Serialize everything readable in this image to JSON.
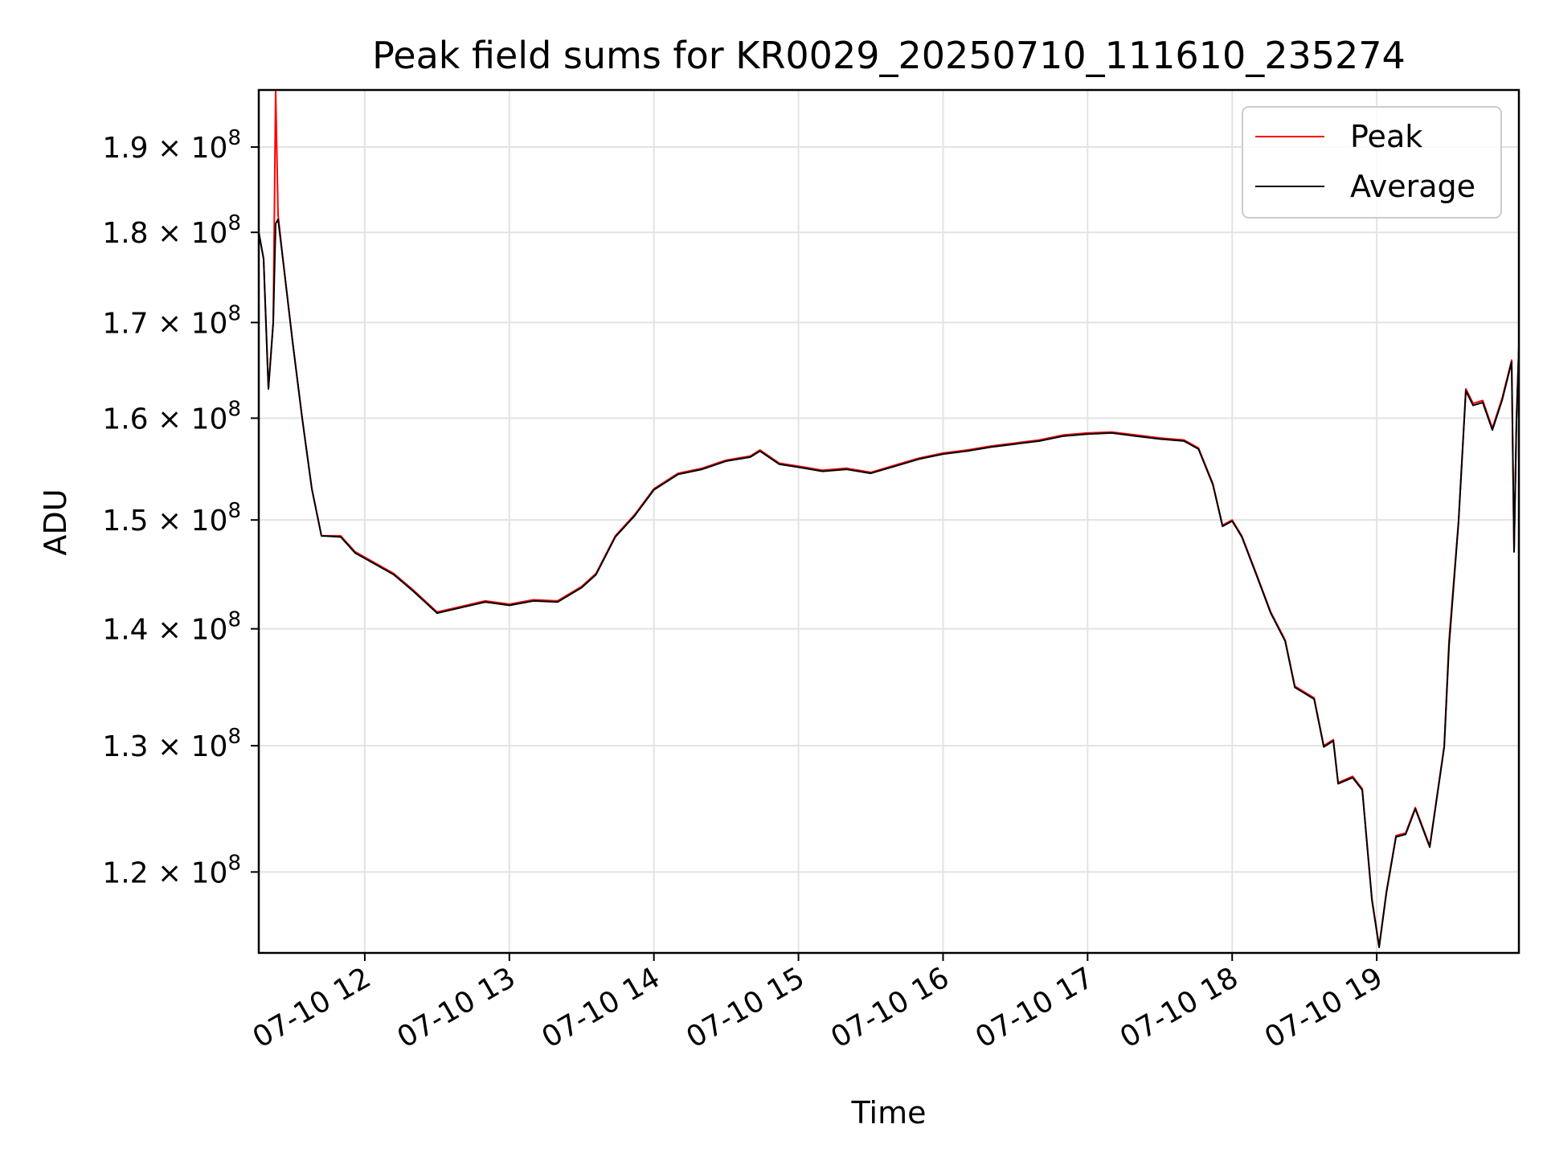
{
  "chart_data": {
    "type": "line",
    "title": "Peak field sums for KR0029_20250710_111610_235274",
    "xlabel": "Time",
    "ylabel": "ADU",
    "y_scale": "log",
    "ylim": [
      114000000,
      197000000
    ],
    "xlim": [
      "2025-07-10 11:16",
      "2025-07-10 19:59"
    ],
    "grid": true,
    "legend_position": "upper-right",
    "x_ticks": [
      {
        "t": "2025-07-10 12:00",
        "label": "07-10 12"
      },
      {
        "t": "2025-07-10 13:00",
        "label": "07-10 13"
      },
      {
        "t": "2025-07-10 14:00",
        "label": "07-10 14"
      },
      {
        "t": "2025-07-10 15:00",
        "label": "07-10 15"
      },
      {
        "t": "2025-07-10 16:00",
        "label": "07-10 16"
      },
      {
        "t": "2025-07-10 17:00",
        "label": "07-10 17"
      },
      {
        "t": "2025-07-10 18:00",
        "label": "07-10 18"
      },
      {
        "t": "2025-07-10 19:00",
        "label": "07-10 19"
      }
    ],
    "y_ticks": [
      {
        "v": 120000000,
        "mantissa": "1.2",
        "exponent": "8"
      },
      {
        "v": 130000000,
        "mantissa": "1.3",
        "exponent": "8"
      },
      {
        "v": 140000000,
        "mantissa": "1.4",
        "exponent": "8"
      },
      {
        "v": 150000000,
        "mantissa": "1.5",
        "exponent": "8"
      },
      {
        "v": 160000000,
        "mantissa": "1.6",
        "exponent": "8"
      },
      {
        "v": 170000000,
        "mantissa": "1.7",
        "exponent": "8"
      },
      {
        "v": 180000000,
        "mantissa": "1.8",
        "exponent": "8"
      },
      {
        "v": 190000000,
        "mantissa": "1.9",
        "exponent": "8"
      }
    ],
    "series": [
      {
        "name": "Peak",
        "color": "#ff0000",
        "points": [
          [
            "2025-07-10 11:16",
            180000000
          ],
          [
            "2025-07-10 11:18",
            177000000
          ],
          [
            "2025-07-10 11:20",
            163000000
          ],
          [
            "2025-07-10 11:22",
            170000000
          ],
          [
            "2025-07-10 11:23",
            197000000
          ],
          [
            "2025-07-10 11:24",
            182000000
          ],
          [
            "2025-07-10 11:26",
            177000000
          ],
          [
            "2025-07-10 11:30",
            168000000
          ],
          [
            "2025-07-10 11:34",
            160000000
          ],
          [
            "2025-07-10 11:38",
            153000000
          ],
          [
            "2025-07-10 11:42",
            148500000
          ],
          [
            "2025-07-10 11:50",
            148500000
          ],
          [
            "2025-07-10 11:56",
            147000000
          ],
          [
            "2025-07-10 12:04",
            146000000
          ],
          [
            "2025-07-10 12:12",
            145000000
          ],
          [
            "2025-07-10 12:20",
            143500000
          ],
          [
            "2025-07-10 12:30",
            141500000
          ],
          [
            "2025-07-10 12:40",
            142000000
          ],
          [
            "2025-07-10 12:50",
            142500000
          ],
          [
            "2025-07-10 13:00",
            142200000
          ],
          [
            "2025-07-10 13:10",
            142600000
          ],
          [
            "2025-07-10 13:20",
            142500000
          ],
          [
            "2025-07-10 13:30",
            143800000
          ],
          [
            "2025-07-10 13:36",
            145000000
          ],
          [
            "2025-07-10 13:44",
            148500000
          ],
          [
            "2025-07-10 13:52",
            150500000
          ],
          [
            "2025-07-10 14:00",
            153000000
          ],
          [
            "2025-07-10 14:10",
            154500000
          ],
          [
            "2025-07-10 14:20",
            155000000
          ],
          [
            "2025-07-10 14:30",
            155800000
          ],
          [
            "2025-07-10 14:40",
            156200000
          ],
          [
            "2025-07-10 14:44",
            156800000
          ],
          [
            "2025-07-10 14:52",
            155500000
          ],
          [
            "2025-07-10 15:00",
            155200000
          ],
          [
            "2025-07-10 15:10",
            154800000
          ],
          [
            "2025-07-10 15:20",
            155000000
          ],
          [
            "2025-07-10 15:30",
            154600000
          ],
          [
            "2025-07-10 15:40",
            155300000
          ],
          [
            "2025-07-10 15:50",
            156000000
          ],
          [
            "2025-07-10 16:00",
            156500000
          ],
          [
            "2025-07-10 16:10",
            156800000
          ],
          [
            "2025-07-10 16:20",
            157200000
          ],
          [
            "2025-07-10 16:30",
            157500000
          ],
          [
            "2025-07-10 16:40",
            157800000
          ],
          [
            "2025-07-10 16:50",
            158300000
          ],
          [
            "2025-07-10 17:00",
            158500000
          ],
          [
            "2025-07-10 17:10",
            158600000
          ],
          [
            "2025-07-10 17:20",
            158300000
          ],
          [
            "2025-07-10 17:30",
            158000000
          ],
          [
            "2025-07-10 17:40",
            157800000
          ],
          [
            "2025-07-10 17:46",
            157000000
          ],
          [
            "2025-07-10 17:52",
            153500000
          ],
          [
            "2025-07-10 17:56",
            149500000
          ],
          [
            "2025-07-10 18:00",
            150000000
          ],
          [
            "2025-07-10 18:04",
            148500000
          ],
          [
            "2025-07-10 18:10",
            145000000
          ],
          [
            "2025-07-10 18:16",
            141500000
          ],
          [
            "2025-07-10 18:22",
            139000000
          ],
          [
            "2025-07-10 18:26",
            135000000
          ],
          [
            "2025-07-10 18:30",
            134500000
          ],
          [
            "2025-07-10 18:34",
            134000000
          ],
          [
            "2025-07-10 18:38",
            130000000
          ],
          [
            "2025-07-10 18:42",
            130500000
          ],
          [
            "2025-07-10 18:44",
            127000000
          ],
          [
            "2025-07-10 18:50",
            127500000
          ],
          [
            "2025-07-10 18:54",
            126500000
          ],
          [
            "2025-07-10 18:58",
            118000000
          ],
          [
            "2025-07-10 19:01",
            114500000
          ],
          [
            "2025-07-10 19:04",
            118500000
          ],
          [
            "2025-07-10 19:08",
            122800000
          ],
          [
            "2025-07-10 19:12",
            123000000
          ],
          [
            "2025-07-10 19:16",
            125000000
          ],
          [
            "2025-07-10 19:22",
            122000000
          ],
          [
            "2025-07-10 19:28",
            130000000
          ],
          [
            "2025-07-10 19:30",
            139000000
          ],
          [
            "2025-07-10 19:34",
            150000000
          ],
          [
            "2025-07-10 19:37",
            163000000
          ],
          [
            "2025-07-10 19:40",
            161500000
          ],
          [
            "2025-07-10 19:44",
            161800000
          ],
          [
            "2025-07-10 19:48",
            159000000
          ],
          [
            "2025-07-10 19:52",
            162000000
          ],
          [
            "2025-07-10 19:56",
            166000000
          ],
          [
            "2025-07-10 19:57",
            147000000
          ],
          [
            "2025-07-10 19:58",
            160000000
          ],
          [
            "2025-07-10 19:59",
            167500000
          ]
        ]
      },
      {
        "name": "Average",
        "color": "#000000",
        "points": [
          [
            "2025-07-10 11:16",
            180000000
          ],
          [
            "2025-07-10 11:18",
            177000000
          ],
          [
            "2025-07-10 11:20",
            163000000
          ],
          [
            "2025-07-10 11:22",
            170000000
          ],
          [
            "2025-07-10 11:23",
            181000000
          ],
          [
            "2025-07-10 11:24",
            181500000
          ],
          [
            "2025-07-10 11:26",
            177000000
          ],
          [
            "2025-07-10 11:30",
            168000000
          ],
          [
            "2025-07-10 11:34",
            160000000
          ],
          [
            "2025-07-10 11:38",
            153000000
          ],
          [
            "2025-07-10 11:42",
            148500000
          ],
          [
            "2025-07-10 11:50",
            148400000
          ],
          [
            "2025-07-10 11:56",
            146900000
          ],
          [
            "2025-07-10 12:04",
            145900000
          ],
          [
            "2025-07-10 12:12",
            144900000
          ],
          [
            "2025-07-10 12:20",
            143400000
          ],
          [
            "2025-07-10 12:30",
            141400000
          ],
          [
            "2025-07-10 12:40",
            141900000
          ],
          [
            "2025-07-10 12:50",
            142400000
          ],
          [
            "2025-07-10 13:00",
            142100000
          ],
          [
            "2025-07-10 13:10",
            142500000
          ],
          [
            "2025-07-10 13:20",
            142400000
          ],
          [
            "2025-07-10 13:30",
            143700000
          ],
          [
            "2025-07-10 13:36",
            144900000
          ],
          [
            "2025-07-10 13:44",
            148400000
          ],
          [
            "2025-07-10 13:52",
            150400000
          ],
          [
            "2025-07-10 14:00",
            152900000
          ],
          [
            "2025-07-10 14:10",
            154400000
          ],
          [
            "2025-07-10 14:20",
            154900000
          ],
          [
            "2025-07-10 14:30",
            155700000
          ],
          [
            "2025-07-10 14:40",
            156100000
          ],
          [
            "2025-07-10 14:44",
            156700000
          ],
          [
            "2025-07-10 14:52",
            155400000
          ],
          [
            "2025-07-10 15:00",
            155100000
          ],
          [
            "2025-07-10 15:10",
            154700000
          ],
          [
            "2025-07-10 15:20",
            154900000
          ],
          [
            "2025-07-10 15:30",
            154500000
          ],
          [
            "2025-07-10 15:40",
            155200000
          ],
          [
            "2025-07-10 15:50",
            155900000
          ],
          [
            "2025-07-10 16:00",
            156400000
          ],
          [
            "2025-07-10 16:10",
            156700000
          ],
          [
            "2025-07-10 16:20",
            157100000
          ],
          [
            "2025-07-10 16:30",
            157400000
          ],
          [
            "2025-07-10 16:40",
            157700000
          ],
          [
            "2025-07-10 16:50",
            158200000
          ],
          [
            "2025-07-10 17:00",
            158400000
          ],
          [
            "2025-07-10 17:10",
            158500000
          ],
          [
            "2025-07-10 17:20",
            158200000
          ],
          [
            "2025-07-10 17:30",
            157900000
          ],
          [
            "2025-07-10 17:40",
            157700000
          ],
          [
            "2025-07-10 17:46",
            156900000
          ],
          [
            "2025-07-10 17:52",
            153400000
          ],
          [
            "2025-07-10 17:56",
            149400000
          ],
          [
            "2025-07-10 18:00",
            149900000
          ],
          [
            "2025-07-10 18:04",
            148400000
          ],
          [
            "2025-07-10 18:10",
            144900000
          ],
          [
            "2025-07-10 18:16",
            141400000
          ],
          [
            "2025-07-10 18:22",
            138900000
          ],
          [
            "2025-07-10 18:26",
            134900000
          ],
          [
            "2025-07-10 18:30",
            134400000
          ],
          [
            "2025-07-10 18:34",
            133900000
          ],
          [
            "2025-07-10 18:38",
            129900000
          ],
          [
            "2025-07-10 18:42",
            130400000
          ],
          [
            "2025-07-10 18:44",
            126900000
          ],
          [
            "2025-07-10 18:50",
            127400000
          ],
          [
            "2025-07-10 18:54",
            126400000
          ],
          [
            "2025-07-10 18:58",
            117900000
          ],
          [
            "2025-07-10 19:01",
            114400000
          ],
          [
            "2025-07-10 19:04",
            118400000
          ],
          [
            "2025-07-10 19:08",
            122700000
          ],
          [
            "2025-07-10 19:12",
            122900000
          ],
          [
            "2025-07-10 19:16",
            124900000
          ],
          [
            "2025-07-10 19:22",
            121900000
          ],
          [
            "2025-07-10 19:28",
            129900000
          ],
          [
            "2025-07-10 19:30",
            138500000
          ],
          [
            "2025-07-10 19:34",
            149900000
          ],
          [
            "2025-07-10 19:37",
            162800000
          ],
          [
            "2025-07-10 19:40",
            161300000
          ],
          [
            "2025-07-10 19:44",
            161600000
          ],
          [
            "2025-07-10 19:48",
            158800000
          ],
          [
            "2025-07-10 19:52",
            161800000
          ],
          [
            "2025-07-10 19:56",
            165800000
          ],
          [
            "2025-07-10 19:57",
            147000000
          ],
          [
            "2025-07-10 19:58",
            159800000
          ],
          [
            "2025-07-10 19:59",
            167300000
          ]
        ]
      }
    ]
  }
}
